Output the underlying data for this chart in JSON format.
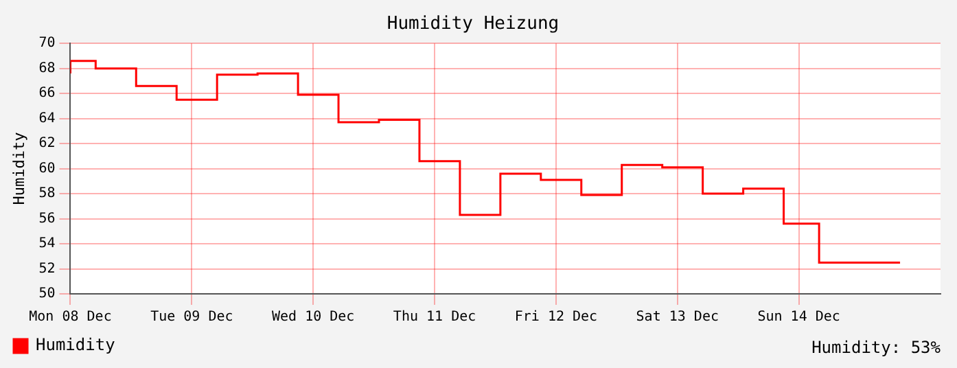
{
  "chart_data": {
    "type": "step",
    "title": "Humidity Heizung",
    "ylabel": "Humidity",
    "x": [
      "--12-08T00:00",
      "--12-08T05:00",
      "--12-08T13:00",
      "--12-08T21:00",
      "--12-09T05:00",
      "--12-09T13:00",
      "--12-09T21:00",
      "--12-10T05:00",
      "--12-10T13:00",
      "--12-10T21:00",
      "--12-11T05:00",
      "--12-11T13:00",
      "--12-11T21:00",
      "--12-12T05:00",
      "--12-12T13:00",
      "--12-12T21:00",
      "--12-13T05:00",
      "--12-13T13:00",
      "--12-13T21:00",
      "--12-14T04:00",
      "--12-14T12:00",
      "--12-14T20:00"
    ],
    "series": [
      {
        "name": "Humidity",
        "color": "#ff0000",
        "values": [
          67.6,
          68.6,
          68.0,
          66.6,
          65.5,
          67.5,
          67.6,
          65.9,
          63.7,
          63.9,
          60.6,
          56.3,
          59.6,
          59.1,
          57.9,
          60.3,
          60.1,
          58.0,
          58.4,
          55.6,
          52.5,
          52.5
        ]
      }
    ],
    "xlim": [
      "--12-08T00:00",
      "--12-15T04:00"
    ],
    "xticks": [
      {
        "value": "--12-08",
        "label": "Mon 08 Dec"
      },
      {
        "value": "--12-09",
        "label": "Tue 09 Dec"
      },
      {
        "value": "--12-10",
        "label": "Wed 10 Dec"
      },
      {
        "value": "--12-11",
        "label": "Thu 11 Dec"
      },
      {
        "value": "--12-12",
        "label": "Fri 12 Dec"
      },
      {
        "value": "--12-13",
        "label": "Sat 13 Dec"
      },
      {
        "value": "--12-14",
        "label": "Sun 14 Dec"
      }
    ],
    "ylim": [
      50,
      70
    ],
    "yticks": [
      50,
      52,
      54,
      56,
      58,
      60,
      62,
      64,
      66,
      68,
      70
    ],
    "grid": true,
    "legend": "bottom left",
    "annotations": [
      "Humidity: 53%"
    ]
  }
}
